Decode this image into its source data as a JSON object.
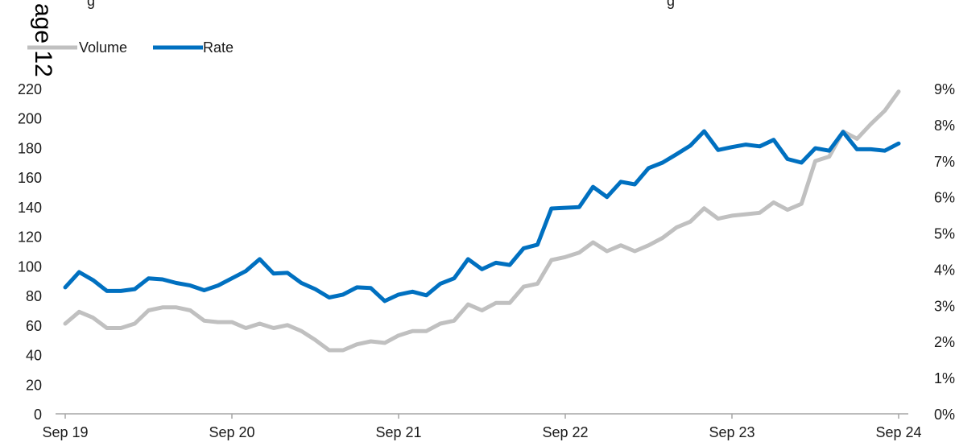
{
  "header": {
    "left_fragment": "g",
    "right_fragment": "g"
  },
  "side_label": "age 12",
  "chart_data": {
    "type": "line",
    "x": [
      "2019-09",
      "2019-10",
      "2019-11",
      "2019-12",
      "2020-01",
      "2020-02",
      "2020-03",
      "2020-04",
      "2020-05",
      "2020-06",
      "2020-07",
      "2020-08",
      "2020-09",
      "2020-10",
      "2020-11",
      "2020-12",
      "2021-01",
      "2021-02",
      "2021-03",
      "2021-04",
      "2021-05",
      "2021-06",
      "2021-07",
      "2021-08",
      "2021-09",
      "2021-10",
      "2021-11",
      "2021-12",
      "2022-01",
      "2022-02",
      "2022-03",
      "2022-04",
      "2022-05",
      "2022-06",
      "2022-07",
      "2022-08",
      "2022-09",
      "2022-10",
      "2022-11",
      "2022-12",
      "2023-01",
      "2023-02",
      "2023-03",
      "2023-04",
      "2023-05",
      "2023-06",
      "2023-07",
      "2023-08",
      "2023-09",
      "2023-10",
      "2023-11",
      "2023-12",
      "2024-01",
      "2024-02",
      "2024-03",
      "2024-04",
      "2024-05",
      "2024-06",
      "2024-07",
      "2024-08",
      "2024-09"
    ],
    "xticks": [
      {
        "label": "Sep 19",
        "x": "2019-09"
      },
      {
        "label": "Sep 20",
        "x": "2020-09"
      },
      {
        "label": "Sep 21",
        "x": "2021-09"
      },
      {
        "label": "Sep 22",
        "x": "2022-09"
      },
      {
        "label": "Sep 23",
        "x": "2023-09"
      },
      {
        "label": "Sep 24",
        "x": "2024-09"
      }
    ],
    "y_left": {
      "ylim": [
        0,
        220
      ],
      "ticks": [
        0,
        20,
        40,
        60,
        80,
        100,
        120,
        140,
        160,
        180,
        200,
        220
      ],
      "tick_labels": [
        "0",
        "20",
        "40",
        "60",
        "80",
        "100",
        "120",
        "140",
        "160",
        "180",
        "200",
        "220"
      ]
    },
    "y_right": {
      "ylim": [
        0,
        9
      ],
      "ticks": [
        0,
        1,
        2,
        3,
        4,
        5,
        6,
        7,
        8,
        9
      ],
      "tick_labels": [
        "0%",
        "1%",
        "2%",
        "3%",
        "4%",
        "5%",
        "6%",
        "7%",
        "8%",
        "9%"
      ]
    },
    "legend_position": "top-left",
    "grid": false,
    "series": [
      {
        "name": "Volume",
        "axis": "left",
        "color": "#c0c0c0",
        "values": [
          61,
          69,
          65,
          58,
          58,
          61,
          70,
          72,
          72,
          70,
          63,
          62,
          62,
          58,
          61,
          58,
          60,
          56,
          50,
          43,
          43,
          47,
          49,
          48,
          53,
          56,
          56,
          61,
          63,
          74,
          70,
          75,
          75,
          86,
          88,
          104,
          106,
          109,
          116,
          110,
          114,
          110,
          114,
          119,
          126,
          130,
          139,
          132,
          134,
          135,
          136,
          143,
          138,
          142,
          171,
          174,
          191,
          186,
          196,
          205,
          218
        ]
      },
      {
        "name": "Rate",
        "axis": "right",
        "color": "#0070c0",
        "values": [
          3.5,
          3.92,
          3.7,
          3.4,
          3.4,
          3.45,
          3.75,
          3.72,
          3.62,
          3.55,
          3.42,
          3.55,
          3.75,
          3.95,
          4.28,
          3.88,
          3.9,
          3.62,
          3.45,
          3.22,
          3.3,
          3.5,
          3.48,
          3.12,
          3.3,
          3.38,
          3.28,
          3.6,
          3.75,
          4.28,
          4.0,
          4.18,
          4.12,
          4.58,
          4.68,
          5.68,
          5.7,
          5.72,
          6.28,
          6.0,
          6.42,
          6.35,
          6.8,
          6.95,
          7.18,
          7.42,
          7.82,
          7.3,
          7.38,
          7.45,
          7.4,
          7.58,
          7.05,
          6.95,
          7.35,
          7.28,
          7.8,
          7.32,
          7.32,
          7.28,
          7.48
        ]
      }
    ]
  }
}
